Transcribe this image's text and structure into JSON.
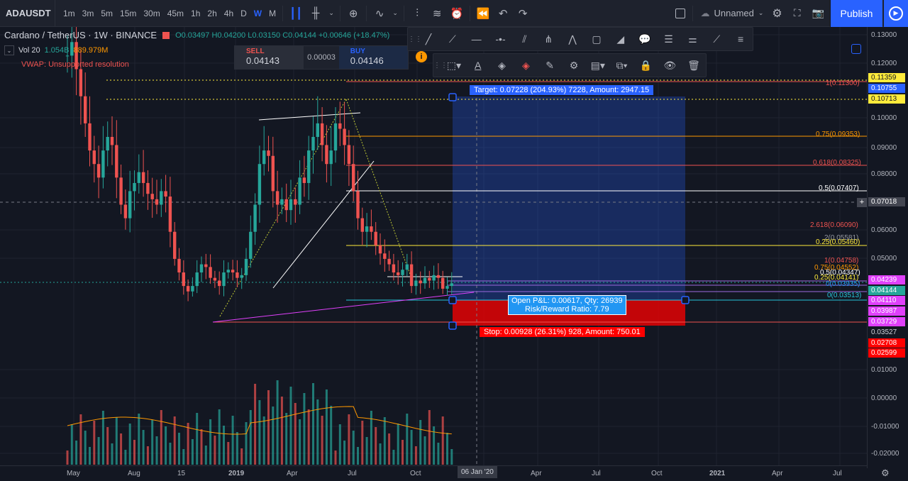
{
  "toolbar": {
    "symbol": "ADAUSDT",
    "timeframes": [
      "1m",
      "3m",
      "5m",
      "15m",
      "30m",
      "45m",
      "1h",
      "2h",
      "4h",
      "D",
      "W",
      "M"
    ],
    "active_timeframe": "W",
    "layout_name": "Unnamed",
    "publish_label": "Publish"
  },
  "legend": {
    "title": "Cardano / TetherUS · 1W · BINANCE",
    "open": "O0.03497",
    "high": "H0.04200",
    "low": "L0.03150",
    "close": "C0.04144",
    "change": "+0.00646 (+18.47%)",
    "vol_label": "Vol 20",
    "vol_value": "1.054B",
    "vol_ma": "889.979M",
    "vwap_msg": "VWAP: Unsupported resolution"
  },
  "trade_widget": {
    "sell_label": "SELL",
    "sell_price": "0.04143",
    "spread": "0.00003",
    "buy_label": "BUY",
    "buy_price": "0.04146"
  },
  "position": {
    "target_text": "Target: 0.07228 (204.93%) 7228, Amount: 2947.15",
    "pnl_text": "Open P&L: 0.00617, Qty: 26939",
    "rr_text": "Risk/Reward Ratio: 7.79",
    "stop_text": "Stop: 0.00928 (26.31%) 928, Amount: 750.01"
  },
  "fib_labels": [
    {
      "text": "1(0.11300)",
      "color": "#ef5350"
    },
    {
      "text": "0.75(0.09353)",
      "color": "#ff9800"
    },
    {
      "text": "0.618(0.08325)",
      "color": "#ef5350"
    },
    {
      "text": "0.5(0.07407)",
      "color": "#ffffff"
    },
    {
      "text": "2.618(0.06090)",
      "color": "#ef5350"
    },
    {
      "text": "2(0.05581)",
      "color": "#9598a1"
    },
    {
      "text": "0.25(0.05460)",
      "color": "#ffeb3b"
    },
    {
      "text": "1(0.04758)",
      "color": "#ef5350"
    },
    {
      "text": "0.75(0.04552)",
      "color": "#ff9800"
    },
    {
      "text": "0.5(0.04347)",
      "color": "#ffffff"
    },
    {
      "text": "0.25(0.04141)",
      "color": "#ffeb3b"
    },
    {
      "text": "0(0.03935)",
      "color": "#2196f3"
    },
    {
      "text": "0(0.03513)",
      "color": "#26c6da"
    }
  ],
  "price_axis": [
    "0.13000",
    "0.12000",
    "0.10000",
    "0.09000",
    "0.08000",
    "0.06000",
    "0.05000",
    "0.01000",
    "0.00000",
    "-0.01000",
    "-0.02000"
  ],
  "price_tags": [
    {
      "text": "0.11359",
      "bg": "#ffeb3b",
      "fg": "#131722"
    },
    {
      "text": "0.10755",
      "bg": "#2a62ff",
      "fg": "#ffffff"
    },
    {
      "text": "0.10713",
      "bg": "#ffeb3b",
      "fg": "#131722"
    },
    {
      "text": "0.07018",
      "bg": "#434651",
      "fg": "#ffffff"
    },
    {
      "text": "0.04239",
      "bg": "#e040fb",
      "fg": "#ffffff"
    },
    {
      "text": "0.04144",
      "bg": "#26a69a",
      "fg": "#ffffff"
    },
    {
      "text": "0.04110",
      "bg": "#e040fb",
      "fg": "#ffffff"
    },
    {
      "text": "0.03987",
      "bg": "#e040fb",
      "fg": "#ffffff"
    },
    {
      "text": "0.03729",
      "bg": "#e040fb",
      "fg": "#ffffff"
    },
    {
      "text": "0.03527",
      "bg": "#131722",
      "fg": "#d1d4dc"
    },
    {
      "text": "0.02708",
      "bg": "#ff0000",
      "fg": "#ffffff"
    },
    {
      "text": "0.02599",
      "bg": "#ff0000",
      "fg": "#ffffff"
    }
  ],
  "time_axis": [
    "May",
    "Aug",
    "15",
    "2019",
    "Apr",
    "Jul",
    "Oct",
    "Apr",
    "Jul",
    "Oct",
    "2021",
    "Apr",
    "Jul"
  ],
  "time_cursor": "06 Jan '20",
  "chart_data": {
    "type": "candlestick",
    "ylim": [
      -0.022,
      0.134
    ],
    "candles_close_trend": [
      0.125,
      0.13,
      0.12,
      0.11,
      0.1,
      0.09,
      0.085,
      0.08,
      0.09,
      0.095,
      0.092,
      0.08,
      0.07,
      0.065,
      0.075,
      0.078,
      0.082,
      0.078,
      0.074,
      0.072,
      0.07,
      0.075,
      0.073,
      0.06,
      0.05,
      0.045,
      0.04,
      0.038,
      0.04,
      0.045,
      0.048,
      0.047,
      0.043,
      0.042,
      0.04,
      0.045,
      0.046,
      0.045,
      0.043,
      0.044,
      0.05,
      0.06,
      0.07,
      0.085,
      0.09,
      0.088,
      0.075,
      0.07,
      0.072,
      0.068,
      0.072,
      0.07,
      0.08,
      0.078,
      0.09,
      0.095,
      0.1,
      0.092,
      0.085,
      0.09,
      0.1,
      0.098,
      0.092,
      0.085,
      0.075,
      0.065,
      0.06,
      0.062,
      0.06,
      0.055,
      0.052,
      0.05,
      0.048,
      0.045,
      0.044,
      0.046,
      0.048,
      0.04,
      0.042,
      0.041,
      0.043,
      0.042,
      0.044,
      0.043,
      0.039,
      0.04,
      0.041
    ]
  }
}
